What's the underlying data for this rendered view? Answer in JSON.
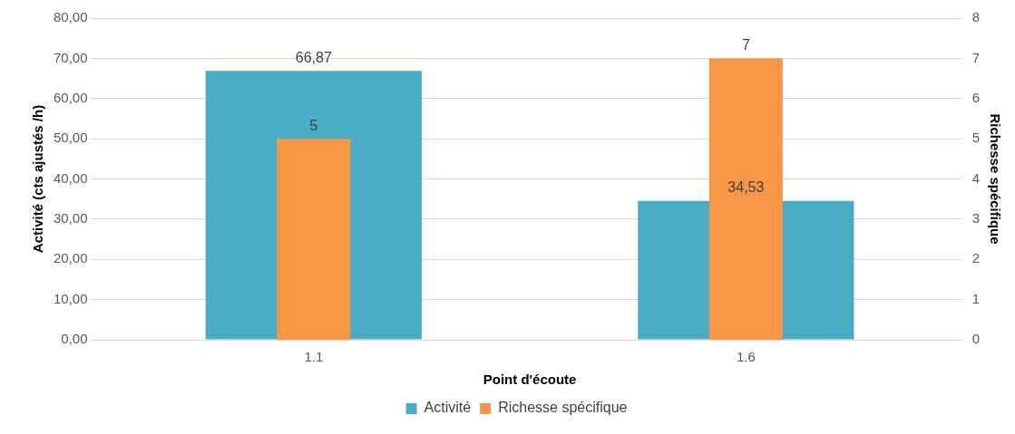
{
  "chart_data": {
    "type": "bar",
    "categories": [
      "1.1",
      "1.6"
    ],
    "xlabel": "Point d'écoute",
    "ylabel": "Activité (cts ajustés /h)",
    "y2label": "Richesse spécifique",
    "series": [
      {
        "name": "Activité",
        "color": "#4bacc6",
        "values": [
          66.87,
          34.53
        ],
        "value_labels": [
          "66,87",
          "34,53"
        ]
      },
      {
        "name": "Richesse spécifique",
        "color": "#f79646",
        "values": [
          5,
          7
        ],
        "axis": "y2",
        "value_labels": [
          "5",
          "7"
        ]
      }
    ],
    "ylim": [
      0,
      80
    ],
    "yticks": [
      {
        "value": 0,
        "label": "0,00"
      },
      {
        "value": 10,
        "label": "10,00"
      },
      {
        "value": 20,
        "label": "20,00"
      },
      {
        "value": 30,
        "label": "30,00"
      },
      {
        "value": 40,
        "label": "40,00"
      },
      {
        "value": 50,
        "label": "50,00"
      },
      {
        "value": 60,
        "label": "60,00"
      },
      {
        "value": 70,
        "label": "70,00"
      },
      {
        "value": 80,
        "label": "80,00"
      }
    ],
    "y2lim": [
      0,
      8
    ],
    "y2ticks": [
      0,
      1,
      2,
      3,
      4,
      5,
      6,
      7,
      8
    ],
    "grid": "y",
    "legend": "bottom"
  }
}
